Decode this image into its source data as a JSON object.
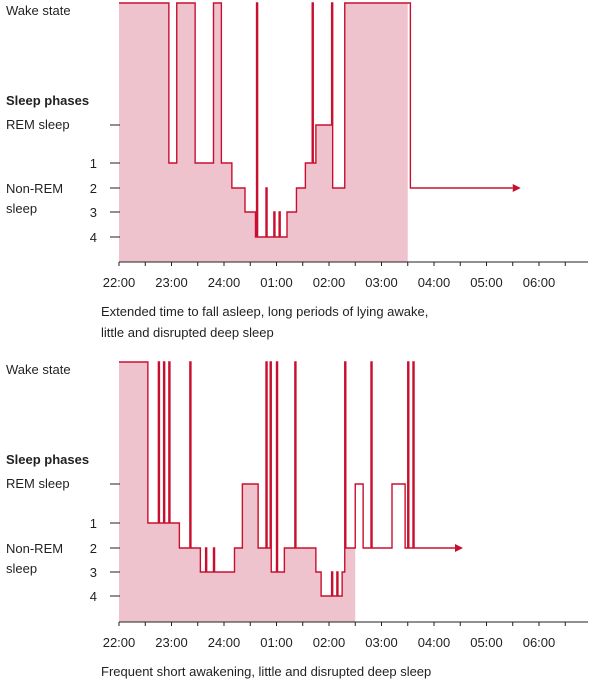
{
  "colors": {
    "fill": "#efc3cd",
    "line": "#c8102e",
    "axis": "#231f20"
  },
  "chart_data": [
    {
      "type": "area",
      "y_labels": {
        "wake": "Wake state",
        "heading": "Sleep phases",
        "rem": "REM sleep",
        "nonrem_line1": "Non-REM",
        "nonrem_line2": "sleep",
        "s1": "1",
        "s2": "2",
        "s3": "3",
        "s4": "4"
      },
      "x_ticks": [
        "22:00",
        "23:00",
        "24:00",
        "01:00",
        "02:00",
        "03:00",
        "04:00",
        "05:00",
        "06:00"
      ],
      "caption": [
        "Extended time to fall asleep, long periods of lying awake,",
        "little and disrupted deep sleep"
      ],
      "y_scale": {
        "wake": 0,
        "rem": 1,
        "s1": 2,
        "s2": 3,
        "s3": 4,
        "s4": 5
      },
      "end_hour": 5.5,
      "series": [
        [
          0.0,
          0
        ],
        [
          0.95,
          0
        ],
        [
          0.95,
          2
        ],
        [
          1.1,
          2
        ],
        [
          1.1,
          0
        ],
        [
          1.45,
          0
        ],
        [
          1.45,
          2
        ],
        [
          1.8,
          2
        ],
        [
          1.8,
          0
        ],
        [
          1.95,
          0
        ],
        [
          1.95,
          2
        ],
        [
          2.15,
          2
        ],
        [
          2.15,
          3
        ],
        [
          2.4,
          3
        ],
        [
          2.4,
          4
        ],
        [
          2.6,
          4
        ],
        [
          2.6,
          5
        ],
        [
          2.62,
          5
        ],
        [
          2.62,
          0
        ],
        [
          2.64,
          0
        ],
        [
          2.64,
          5
        ],
        [
          2.8,
          5
        ],
        [
          2.8,
          3
        ],
        [
          2.82,
          3
        ],
        [
          2.82,
          5
        ],
        [
          2.95,
          5
        ],
        [
          2.95,
          4
        ],
        [
          2.97,
          4
        ],
        [
          2.97,
          5
        ],
        [
          3.05,
          5
        ],
        [
          3.05,
          4
        ],
        [
          3.07,
          4
        ],
        [
          3.07,
          5
        ],
        [
          3.2,
          5
        ],
        [
          3.2,
          4
        ],
        [
          3.38,
          4
        ],
        [
          3.38,
          3
        ],
        [
          3.55,
          3
        ],
        [
          3.55,
          2
        ],
        [
          3.68,
          2
        ],
        [
          3.68,
          0
        ],
        [
          3.7,
          0
        ],
        [
          3.7,
          2
        ],
        [
          3.75,
          2
        ],
        [
          3.75,
          1
        ],
        [
          4.05,
          1
        ],
        [
          4.05,
          0
        ],
        [
          4.07,
          0
        ],
        [
          4.07,
          3
        ],
        [
          4.3,
          3
        ],
        [
          4.3,
          0
        ],
        [
          5.55,
          0
        ],
        [
          5.55,
          3
        ],
        [
          7.5,
          3
        ]
      ]
    },
    {
      "type": "area",
      "y_labels": {
        "wake": "Wake state",
        "heading": "Sleep phases",
        "rem": "REM sleep",
        "nonrem_line1": "Non-REM",
        "nonrem_line2": "sleep",
        "s1": "1",
        "s2": "2",
        "s3": "3",
        "s4": "4"
      },
      "x_ticks": [
        "22:00",
        "23:00",
        "24:00",
        "01:00",
        "02:00",
        "03:00",
        "04:00",
        "05:00",
        "06:00"
      ],
      "caption": [
        "Frequent short awakening, little and disrupted deep sleep"
      ],
      "y_scale": {
        "wake": 0,
        "rem": 1,
        "s1": 2,
        "s2": 3,
        "s3": 4,
        "s4": 5
      },
      "end_hour": 4.5,
      "series": [
        [
          0.0,
          0
        ],
        [
          0.55,
          0
        ],
        [
          0.55,
          2
        ],
        [
          0.75,
          2
        ],
        [
          0.75,
          0
        ],
        [
          0.77,
          0
        ],
        [
          0.77,
          2
        ],
        [
          0.85,
          2
        ],
        [
          0.85,
          0
        ],
        [
          0.87,
          0
        ],
        [
          0.87,
          2
        ],
        [
          0.95,
          2
        ],
        [
          0.95,
          0
        ],
        [
          0.97,
          0
        ],
        [
          0.97,
          2
        ],
        [
          1.15,
          2
        ],
        [
          1.15,
          3
        ],
        [
          1.35,
          3
        ],
        [
          1.35,
          0
        ],
        [
          1.37,
          0
        ],
        [
          1.37,
          3
        ],
        [
          1.55,
          3
        ],
        [
          1.55,
          4
        ],
        [
          1.65,
          4
        ],
        [
          1.65,
          3
        ],
        [
          1.67,
          3
        ],
        [
          1.67,
          4
        ],
        [
          1.8,
          4
        ],
        [
          1.8,
          3
        ],
        [
          1.82,
          3
        ],
        [
          1.82,
          4
        ],
        [
          2.2,
          4
        ],
        [
          2.2,
          3
        ],
        [
          2.35,
          3
        ],
        [
          2.35,
          1
        ],
        [
          2.65,
          1
        ],
        [
          2.65,
          3
        ],
        [
          2.8,
          3
        ],
        [
          2.8,
          0
        ],
        [
          2.82,
          0
        ],
        [
          2.82,
          3
        ],
        [
          2.88,
          3
        ],
        [
          2.88,
          0
        ],
        [
          2.9,
          0
        ],
        [
          2.9,
          4
        ],
        [
          3.0,
          4
        ],
        [
          3.0,
          0
        ],
        [
          3.02,
          0
        ],
        [
          3.02,
          4
        ],
        [
          3.15,
          4
        ],
        [
          3.15,
          3
        ],
        [
          3.35,
          3
        ],
        [
          3.35,
          0
        ],
        [
          3.37,
          0
        ],
        [
          3.37,
          3
        ],
        [
          3.75,
          3
        ],
        [
          3.75,
          4
        ],
        [
          3.85,
          4
        ],
        [
          3.85,
          5
        ],
        [
          4.05,
          5
        ],
        [
          4.05,
          4
        ],
        [
          4.07,
          4
        ],
        [
          4.07,
          5
        ],
        [
          4.15,
          5
        ],
        [
          4.15,
          4
        ],
        [
          4.17,
          4
        ],
        [
          4.17,
          5
        ],
        [
          4.25,
          5
        ],
        [
          4.25,
          4
        ],
        [
          4.3,
          4
        ],
        [
          4.3,
          0
        ],
        [
          4.32,
          0
        ],
        [
          4.32,
          3
        ],
        [
          4.5,
          3
        ],
        [
          4.5,
          1
        ],
        [
          4.65,
          1
        ],
        [
          4.65,
          3
        ],
        [
          4.8,
          3
        ],
        [
          4.8,
          0
        ],
        [
          4.82,
          0
        ],
        [
          4.82,
          3
        ],
        [
          5.2,
          3
        ],
        [
          5.2,
          1
        ],
        [
          5.45,
          1
        ],
        [
          5.45,
          3
        ],
        [
          5.5,
          3
        ],
        [
          5.5,
          0
        ],
        [
          5.52,
          0
        ],
        [
          5.52,
          3
        ],
        [
          5.6,
          3
        ],
        [
          5.6,
          0
        ],
        [
          5.62,
          0
        ],
        [
          5.62,
          3
        ],
        [
          6.4,
          3
        ]
      ]
    }
  ]
}
